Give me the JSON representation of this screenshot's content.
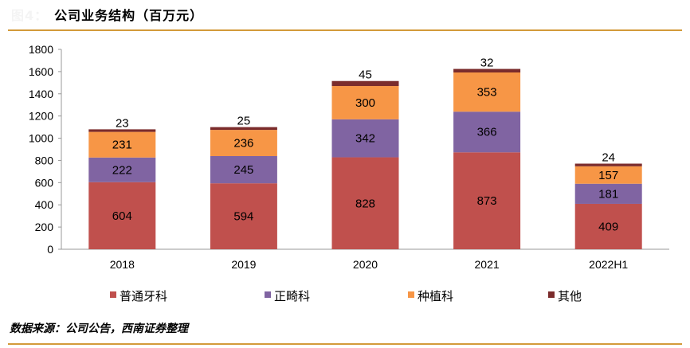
{
  "header": {
    "figure_label": "图4：",
    "title": "公司业务结构（百万元）"
  },
  "source": "数据来源：公司公告，西南证券整理",
  "chart_data": {
    "type": "bar",
    "stacked": true,
    "categories": [
      "2018",
      "2019",
      "2020",
      "2021",
      "2022H1"
    ],
    "series": [
      {
        "name": "普通牙科",
        "color": "#c0504d",
        "values": [
          604,
          594,
          828,
          873,
          409
        ]
      },
      {
        "name": "正畸科",
        "color": "#8064a2",
        "values": [
          222,
          245,
          342,
          366,
          181
        ]
      },
      {
        "name": "种植科",
        "color": "#f79646",
        "values": [
          231,
          236,
          300,
          353,
          157
        ]
      },
      {
        "name": "其他",
        "color": "#7b2c2c",
        "values": [
          23,
          25,
          45,
          32,
          24
        ]
      }
    ],
    "ylim": [
      0,
      1800
    ],
    "yticks": [
      0,
      200,
      400,
      600,
      800,
      1000,
      1200,
      1400,
      1600,
      1800
    ],
    "grid": false,
    "legend": "bottom"
  }
}
